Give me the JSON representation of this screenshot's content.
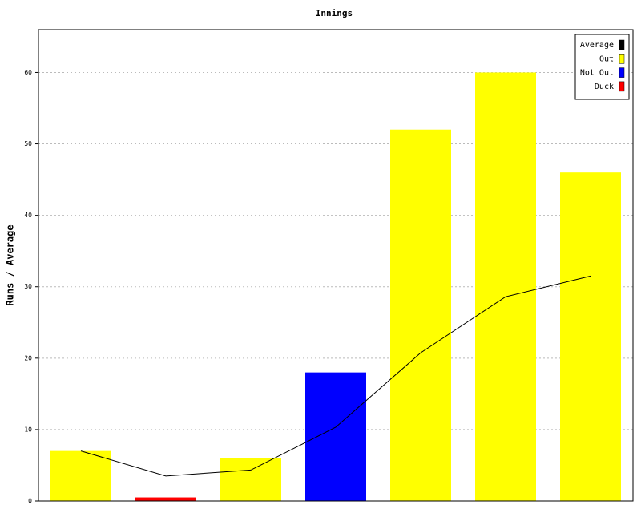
{
  "chart_data": {
    "type": "bar",
    "title": "Innings",
    "y_label": "Runs / Average",
    "categories": [
      null,
      null,
      null,
      null,
      null,
      null,
      null
    ],
    "series": [
      {
        "name": "Average",
        "type": "line",
        "color": "#000000",
        "values": [
          7,
          3.5,
          4.33,
          10.33,
          20.75,
          28.6,
          31.5
        ]
      },
      {
        "name": "Out",
        "color": "#ffff00",
        "values": [
          7,
          null,
          6,
          null,
          52,
          60,
          46
        ]
      },
      {
        "name": "Not Out",
        "color": "#0000ff",
        "values": [
          null,
          null,
          null,
          18,
          null,
          null,
          null
        ]
      },
      {
        "name": "Duck",
        "color": "#ff0000",
        "values": [
          null,
          0.5,
          null,
          null,
          null,
          null,
          null
        ]
      }
    ],
    "ylim": [
      0,
      66
    ],
    "yticks": [
      0,
      10,
      20,
      30,
      40,
      50,
      60
    ],
    "grid": true,
    "legend": "top-right"
  }
}
